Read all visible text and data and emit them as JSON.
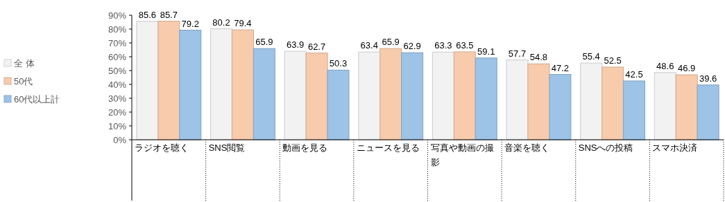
{
  "chart_data": {
    "type": "bar",
    "categories": [
      "ラジオを聴く",
      "SNS閲覧",
      "動画を見る",
      "ニュースを見る",
      "写真や動画の撮影",
      "音楽を聴く",
      "SNSへの投稿",
      "スマホ決済"
    ],
    "series": [
      {
        "name": "全 体",
        "color": "#f2f2f2",
        "values": [
          85.6,
          80.2,
          63.9,
          63.4,
          63.3,
          57.7,
          55.4,
          48.6
        ]
      },
      {
        "name": "50代",
        "color": "#f8cbad",
        "values": [
          85.7,
          79.4,
          62.7,
          65.9,
          63.5,
          54.8,
          52.5,
          46.9
        ]
      },
      {
        "name": "60代以上計",
        "color": "#9dc3e6",
        "values": [
          79.2,
          65.9,
          50.3,
          62.9,
          59.1,
          47.2,
          42.5,
          39.6
        ]
      }
    ],
    "ylim": [
      0,
      90
    ],
    "yticks": [
      {
        "value": 0,
        "label": "0%"
      },
      {
        "value": 10,
        "label": "10%"
      },
      {
        "value": 20,
        "label": "20%"
      },
      {
        "value": 30,
        "label": "30%"
      },
      {
        "value": 40,
        "label": "40%"
      },
      {
        "value": 50,
        "label": "50%"
      },
      {
        "value": 60,
        "label": "60%"
      },
      {
        "value": 70,
        "label": "70%"
      },
      {
        "value": 80,
        "label": "80%"
      },
      {
        "value": 90,
        "label": "90%"
      }
    ],
    "data_labels": true,
    "legend": "left"
  }
}
